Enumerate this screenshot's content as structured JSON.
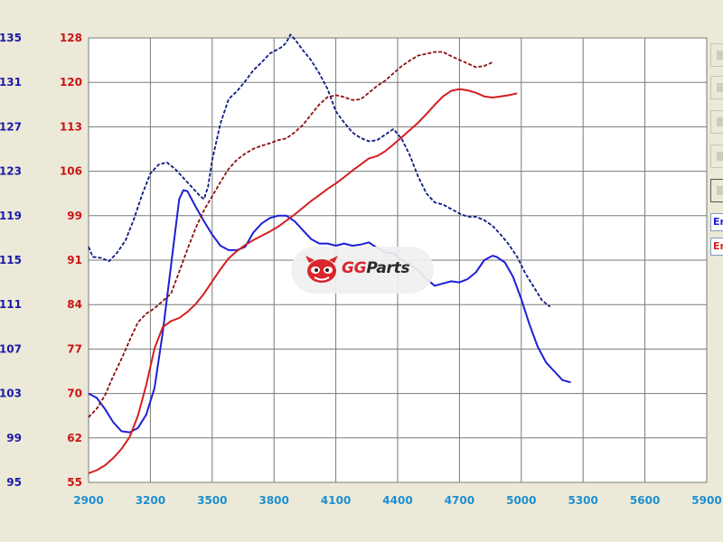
{
  "colors": {
    "blue": "#1f1fd6",
    "blue_dashed": "#0c1a80",
    "red": "#d41f1f",
    "red_dashed": "#8b1010",
    "x_axis_text": "#1e8fd0",
    "left_axis_text": "#1a1aa8",
    "right_axis_text": "#c81414",
    "grid": "#7a7a7a",
    "plot_bg": "#ffffff"
  },
  "watermark": {
    "brand_part1": "GG",
    "brand_part2": "Parts",
    "icon": "monster-face-logo-icon"
  },
  "legend": {
    "chip1": "En",
    "chip2": "En"
  },
  "chart_data": {
    "type": "line",
    "x": {
      "range": [
        2900,
        5900
      ],
      "ticks": [
        2900,
        3200,
        3500,
        3800,
        4100,
        4400,
        4700,
        5000,
        5300,
        5600,
        5900
      ]
    },
    "y_left": {
      "range": [
        95,
        135
      ],
      "tick_labels": [
        "135",
        "131",
        "127",
        "123",
        "119",
        "115",
        "111",
        "107",
        "103",
        "99",
        "95"
      ]
    },
    "y_right": {
      "range": [
        55,
        128
      ],
      "tick_labels": [
        "128",
        "120",
        "113",
        "106",
        "99",
        "91",
        "84",
        "77",
        "70",
        "62",
        "55"
      ]
    },
    "grid": true,
    "series": [
      {
        "axis": "left",
        "style": "solid",
        "color_key": "blue",
        "points": [
          [
            2900,
            103
          ],
          [
            2940,
            102.6
          ],
          [
            2980,
            101.6
          ],
          [
            3020,
            100.4
          ],
          [
            3060,
            99.6
          ],
          [
            3100,
            99.5
          ],
          [
            3140,
            99.9
          ],
          [
            3180,
            101.1
          ],
          [
            3220,
            103.5
          ],
          [
            3260,
            108.5
          ],
          [
            3300,
            114.5
          ],
          [
            3340,
            120.5
          ],
          [
            3360,
            121.3
          ],
          [
            3380,
            121.2
          ],
          [
            3420,
            119.8
          ],
          [
            3460,
            118.5
          ],
          [
            3500,
            117.3
          ],
          [
            3540,
            116.3
          ],
          [
            3580,
            115.9
          ],
          [
            3620,
            115.9
          ],
          [
            3660,
            116.2
          ],
          [
            3700,
            117.5
          ],
          [
            3740,
            118.3
          ],
          [
            3780,
            118.8
          ],
          [
            3820,
            119
          ],
          [
            3860,
            119
          ],
          [
            3900,
            118.5
          ],
          [
            3940,
            117.7
          ],
          [
            3980,
            116.9
          ],
          [
            4020,
            116.5
          ],
          [
            4060,
            116.5
          ],
          [
            4100,
            116.3
          ],
          [
            4140,
            116.5
          ],
          [
            4180,
            116.3
          ],
          [
            4220,
            116.4
          ],
          [
            4260,
            116.6
          ],
          [
            4300,
            116.1
          ],
          [
            4340,
            115.7
          ],
          [
            4380,
            115.6
          ],
          [
            4420,
            115
          ],
          [
            4460,
            114.6
          ],
          [
            4500,
            114.1
          ],
          [
            4540,
            113.3
          ],
          [
            4580,
            112.7
          ],
          [
            4620,
            112.9
          ],
          [
            4660,
            113.1
          ],
          [
            4700,
            113
          ],
          [
            4740,
            113.3
          ],
          [
            4780,
            113.9
          ],
          [
            4820,
            115
          ],
          [
            4860,
            115.4
          ],
          [
            4880,
            115.3
          ],
          [
            4920,
            114.8
          ],
          [
            4960,
            113.5
          ],
          [
            5000,
            111.5
          ],
          [
            5040,
            109.2
          ],
          [
            5080,
            107.2
          ],
          [
            5120,
            105.8
          ],
          [
            5160,
            105
          ],
          [
            5200,
            104.2
          ],
          [
            5240,
            104
          ]
        ]
      },
      {
        "axis": "left",
        "style": "dashed",
        "color_key": "blue_dashed",
        "points": [
          [
            2900,
            116.2
          ],
          [
            2920,
            115.3
          ],
          [
            2960,
            115.2
          ],
          [
            3000,
            114.9
          ],
          [
            3040,
            115.7
          ],
          [
            3080,
            116.8
          ],
          [
            3120,
            118.7
          ],
          [
            3160,
            120.9
          ],
          [
            3200,
            122.8
          ],
          [
            3240,
            123.6
          ],
          [
            3280,
            123.8
          ],
          [
            3320,
            123.2
          ],
          [
            3360,
            122.4
          ],
          [
            3400,
            121.6
          ],
          [
            3440,
            120.8
          ],
          [
            3460,
            120.5
          ],
          [
            3480,
            121.6
          ],
          [
            3500,
            124
          ],
          [
            3540,
            127.3
          ],
          [
            3580,
            129.5
          ],
          [
            3620,
            130.2
          ],
          [
            3660,
            131.1
          ],
          [
            3700,
            132.1
          ],
          [
            3740,
            132.8
          ],
          [
            3780,
            133.6
          ],
          [
            3820,
            134
          ],
          [
            3840,
            134.2
          ],
          [
            3860,
            134.6
          ],
          [
            3880,
            135.3
          ],
          [
            3900,
            134.9
          ],
          [
            3940,
            133.9
          ],
          [
            3980,
            133
          ],
          [
            4020,
            131.8
          ],
          [
            4060,
            130.4
          ],
          [
            4100,
            128.4
          ],
          [
            4140,
            127.4
          ],
          [
            4180,
            126.5
          ],
          [
            4220,
            126
          ],
          [
            4260,
            125.7
          ],
          [
            4300,
            125.8
          ],
          [
            4340,
            126.3
          ],
          [
            4380,
            126.8
          ],
          [
            4420,
            125.9
          ],
          [
            4460,
            124.4
          ],
          [
            4500,
            122.5
          ],
          [
            4540,
            121
          ],
          [
            4580,
            120.2
          ],
          [
            4620,
            120
          ],
          [
            4660,
            119.6
          ],
          [
            4700,
            119.2
          ],
          [
            4740,
            118.9
          ],
          [
            4780,
            118.9
          ],
          [
            4820,
            118.6
          ],
          [
            4860,
            118.1
          ],
          [
            4900,
            117.3
          ],
          [
            4940,
            116.4
          ],
          [
            4980,
            115.3
          ],
          [
            5020,
            113.8
          ],
          [
            5060,
            112.6
          ],
          [
            5100,
            111.4
          ],
          [
            5140,
            110.8
          ]
        ]
      },
      {
        "axis": "right",
        "style": "solid",
        "color_key": "red",
        "points": [
          [
            2900,
            56.5
          ],
          [
            2940,
            57
          ],
          [
            2980,
            57.8
          ],
          [
            3020,
            59
          ],
          [
            3060,
            60.5
          ],
          [
            3100,
            62.5
          ],
          [
            3140,
            66
          ],
          [
            3180,
            71
          ],
          [
            3220,
            77
          ],
          [
            3260,
            80.5
          ],
          [
            3300,
            81.5
          ],
          [
            3340,
            82
          ],
          [
            3380,
            83
          ],
          [
            3420,
            84.3
          ],
          [
            3460,
            86
          ],
          [
            3500,
            88
          ],
          [
            3540,
            90
          ],
          [
            3580,
            91.8
          ],
          [
            3620,
            93
          ],
          [
            3660,
            94
          ],
          [
            3700,
            94.8
          ],
          [
            3740,
            95.5
          ],
          [
            3780,
            96.2
          ],
          [
            3820,
            97
          ],
          [
            3860,
            98
          ],
          [
            3900,
            99
          ],
          [
            3940,
            100.1
          ],
          [
            3980,
            101.2
          ],
          [
            4020,
            102.2
          ],
          [
            4060,
            103.2
          ],
          [
            4100,
            104.1
          ],
          [
            4140,
            105.1
          ],
          [
            4180,
            106.2
          ],
          [
            4220,
            107.2
          ],
          [
            4260,
            108.2
          ],
          [
            4300,
            108.6
          ],
          [
            4340,
            109.4
          ],
          [
            4380,
            110.5
          ],
          [
            4420,
            111.7
          ],
          [
            4460,
            112.9
          ],
          [
            4500,
            114.1
          ],
          [
            4540,
            115.5
          ],
          [
            4580,
            117
          ],
          [
            4620,
            118.4
          ],
          [
            4660,
            119.3
          ],
          [
            4700,
            119.6
          ],
          [
            4740,
            119.4
          ],
          [
            4780,
            119
          ],
          [
            4820,
            118.4
          ],
          [
            4860,
            118.2
          ],
          [
            4900,
            118.4
          ],
          [
            4940,
            118.6
          ],
          [
            4980,
            118.9
          ]
        ]
      },
      {
        "axis": "right",
        "style": "dashed",
        "color_key": "red_dashed",
        "points": [
          [
            2900,
            65.7
          ],
          [
            2940,
            67.1
          ],
          [
            2980,
            69.3
          ],
          [
            3020,
            72.5
          ],
          [
            3060,
            75.3
          ],
          [
            3100,
            78.4
          ],
          [
            3140,
            81.3
          ],
          [
            3180,
            82.7
          ],
          [
            3220,
            83.6
          ],
          [
            3260,
            84.8
          ],
          [
            3300,
            86
          ],
          [
            3340,
            89.6
          ],
          [
            3380,
            93.3
          ],
          [
            3420,
            96.8
          ],
          [
            3460,
            99.7
          ],
          [
            3500,
            102
          ],
          [
            3540,
            104.3
          ],
          [
            3580,
            106.5
          ],
          [
            3620,
            108
          ],
          [
            3660,
            109
          ],
          [
            3700,
            109.8
          ],
          [
            3740,
            110.3
          ],
          [
            3780,
            110.7
          ],
          [
            3820,
            111.2
          ],
          [
            3860,
            111.5
          ],
          [
            3900,
            112.5
          ],
          [
            3940,
            113.7
          ],
          [
            3980,
            115.4
          ],
          [
            4020,
            117.1
          ],
          [
            4060,
            118.3
          ],
          [
            4100,
            118.6
          ],
          [
            4140,
            118.3
          ],
          [
            4180,
            117.8
          ],
          [
            4220,
            117.9
          ],
          [
            4260,
            119
          ],
          [
            4300,
            120.1
          ],
          [
            4340,
            121
          ],
          [
            4380,
            122.2
          ],
          [
            4420,
            123.4
          ],
          [
            4460,
            124.3
          ],
          [
            4500,
            125.1
          ],
          [
            4540,
            125.4
          ],
          [
            4580,
            125.7
          ],
          [
            4620,
            125.7
          ],
          [
            4660,
            125
          ],
          [
            4700,
            124.4
          ],
          [
            4740,
            123.8
          ],
          [
            4780,
            123.2
          ],
          [
            4820,
            123.4
          ],
          [
            4860,
            124
          ]
        ]
      }
    ]
  }
}
